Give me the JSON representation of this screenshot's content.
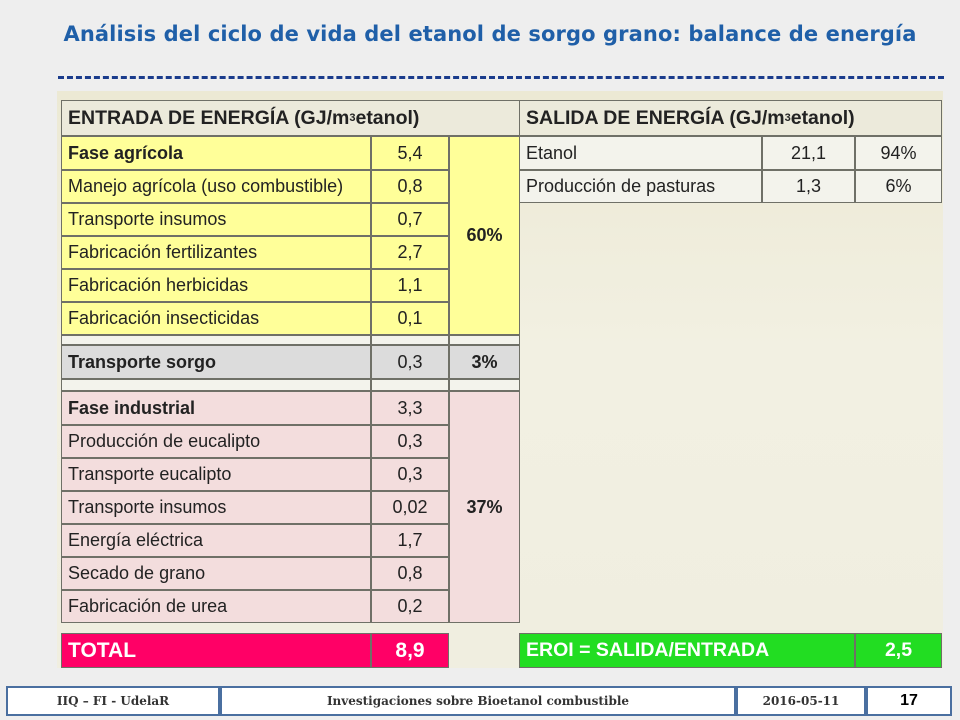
{
  "title": "Análisis del ciclo de vida del etanol de sorgo grano: balance de energía",
  "entrada": {
    "header_pre": "ENTRADA DE ENERGÍA (GJ/m",
    "header_sup": "3",
    "header_post": " etanol)",
    "agricola": [
      {
        "label": "Fase agrícola",
        "value": "5,4"
      },
      {
        "label": "Manejo agrícola (uso combustible)",
        "value": "0,8"
      },
      {
        "label": "Transporte insumos",
        "value": "0,7"
      },
      {
        "label": "Fabricación fertilizantes",
        "value": "2,7"
      },
      {
        "label": "Fabricación herbicidas",
        "value": "1,1"
      },
      {
        "label": "Fabricación insecticidas",
        "value": "0,1"
      }
    ],
    "agricola_pct": "60%",
    "transporte": {
      "label": "Transporte sorgo",
      "value": "0,3",
      "pct": "3%"
    },
    "industrial": [
      {
        "label": "Fase industrial",
        "value": "3,3"
      },
      {
        "label": "Producción de eucalipto",
        "value": "0,3"
      },
      {
        "label": "Transporte eucalipto",
        "value": "0,3"
      },
      {
        "label": "Transporte insumos",
        "value": "0,02"
      },
      {
        "label": "Energía eléctrica",
        "value": "1,7"
      },
      {
        "label": "Secado de grano",
        "value": "0,8"
      },
      {
        "label": "Fabricación de urea",
        "value": "0,2"
      }
    ],
    "industrial_pct": "37%",
    "total": {
      "label": "TOTAL",
      "value": "8,9"
    }
  },
  "salida": {
    "header_pre": "SALIDA DE ENERGÍA (GJ/m",
    "header_sup": "3",
    "header_post": " etanol)",
    "rows": [
      {
        "label": "Etanol",
        "value": "21,1",
        "pct": "94%"
      },
      {
        "label": "Producción de pasturas",
        "value": "1,3",
        "pct": "6%"
      }
    ],
    "eroi": {
      "label": "EROI = SALIDA/ENTRADA",
      "value": "2,5"
    }
  },
  "footer": {
    "org": "IIQ – FI - UdelaR",
    "topic": "Investigaciones sobre Bioetanol combustible",
    "date": "2016-05-11",
    "page": "17"
  },
  "colors": {
    "title": "#1f5fa8",
    "yellow": "#ffff99",
    "grey": "#dcdcdc",
    "pink": "#f3dddd",
    "total_magenta": "#ff0066",
    "eroi_green": "#22dd22",
    "footer_bar": "#4a6fa0"
  }
}
